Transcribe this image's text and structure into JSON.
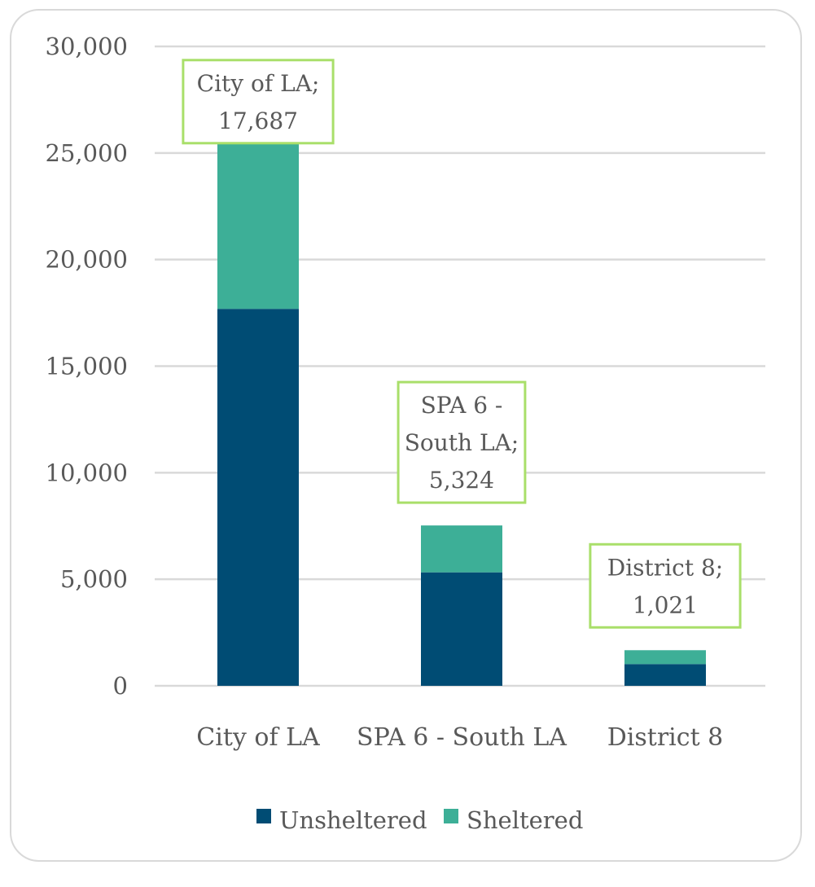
{
  "chart_data": {
    "type": "bar",
    "stacked": true,
    "categories": [
      "City of LA",
      "SPA 6 - South LA",
      "District 8"
    ],
    "series": [
      {
        "name": "Unsheltered",
        "values": [
          17687,
          5324,
          1021
        ],
        "color": "#004c74"
      },
      {
        "name": "Sheltered",
        "values": [
          7850,
          2200,
          650
        ],
        "color": "#3daf97"
      }
    ],
    "ylim": [
      0,
      30000
    ],
    "yticks": [
      0,
      5000,
      10000,
      15000,
      20000,
      25000,
      30000
    ],
    "ytick_labels": [
      "0",
      "5,000",
      "10,000",
      "15,000",
      "20,000",
      "25,000",
      "30,000"
    ],
    "data_labels": [
      {
        "lines": [
          "City of LA;",
          "17,687"
        ]
      },
      {
        "lines": [
          "SPA 6 -",
          "South LA;",
          "5,324"
        ]
      },
      {
        "lines": [
          "District 8;",
          "1,021"
        ]
      }
    ],
    "data_label_border_color": "#a9df6a",
    "gridlines": true,
    "legend_position": "bottom",
    "title": "",
    "xlabel": "",
    "ylabel": ""
  }
}
